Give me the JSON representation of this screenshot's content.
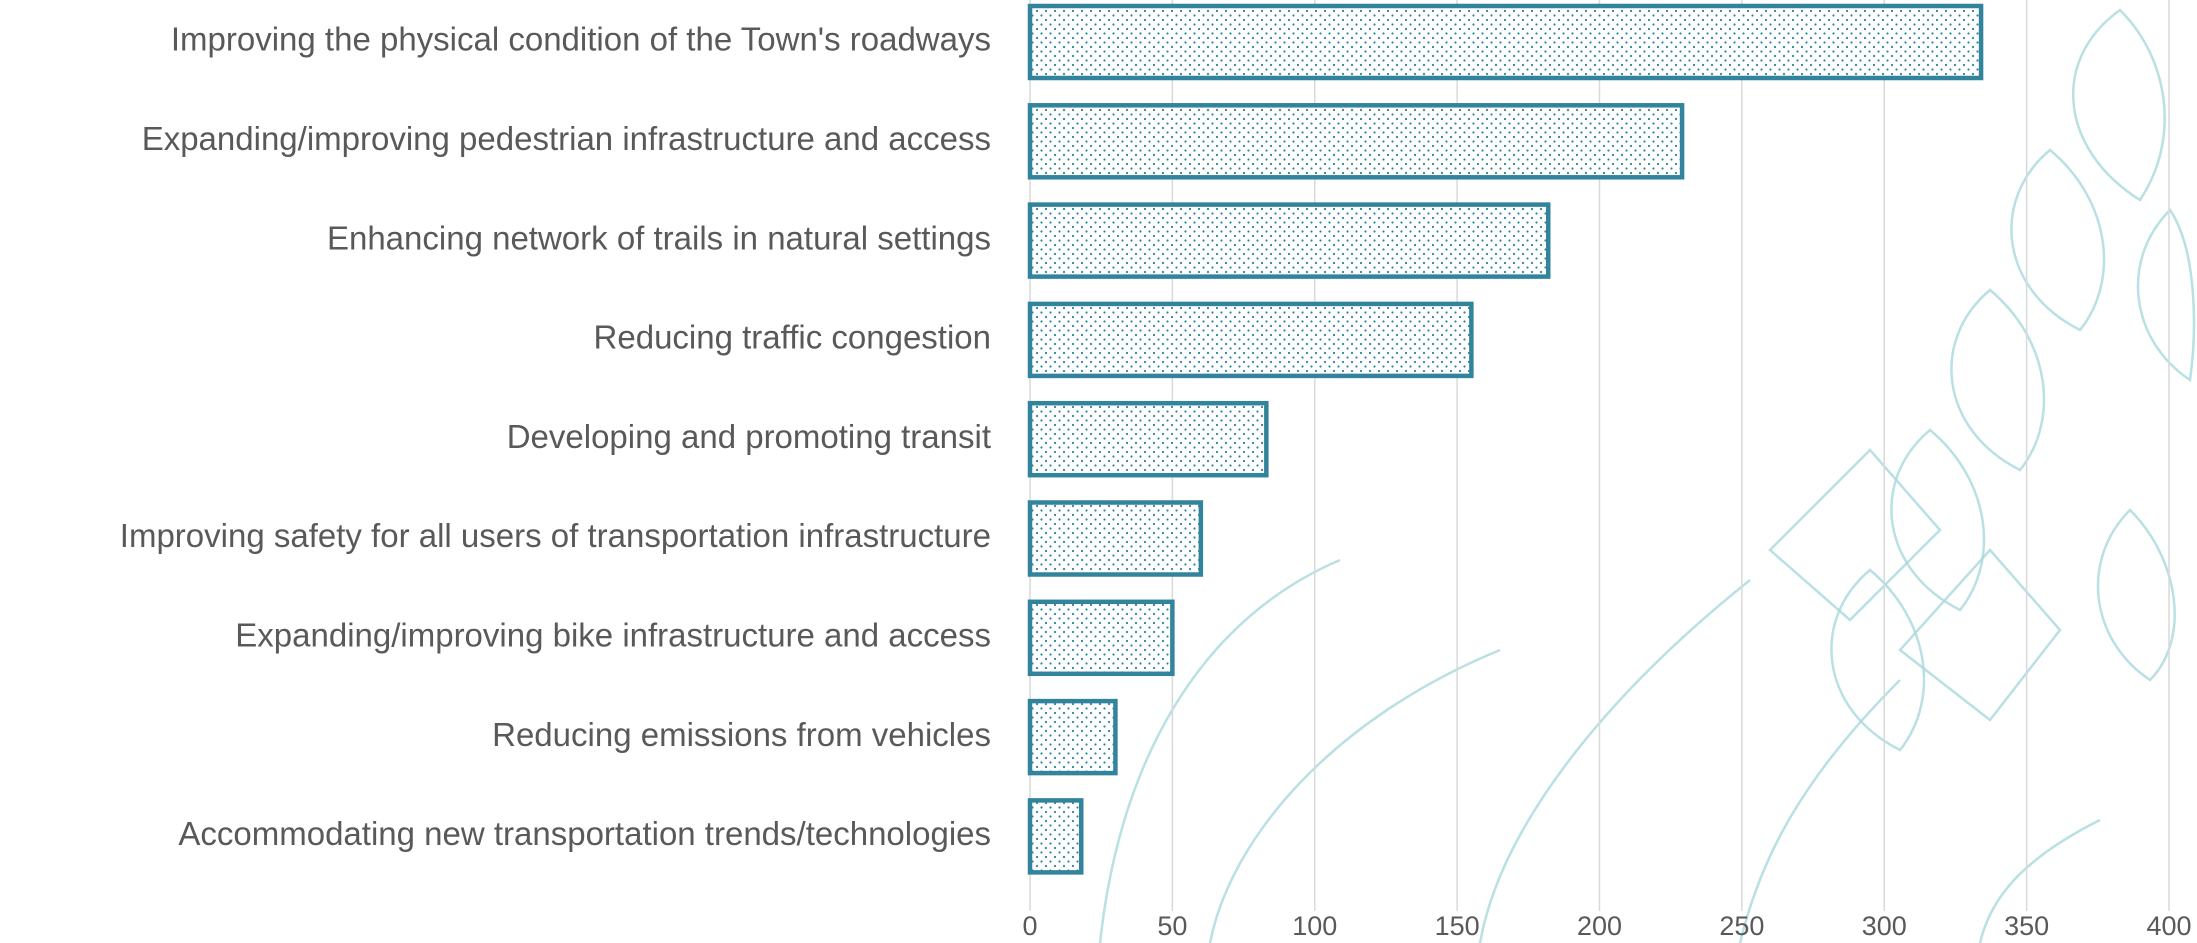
{
  "chart_data": {
    "type": "bar",
    "orientation": "horizontal",
    "categories": [
      "Improving the physical condition of the Town's roadways",
      "Expanding/improving pedestrian infrastructure and access",
      "Enhancing network of trails in natural settings",
      "Reducing traffic congestion",
      "Developing and promoting transit",
      "Improving safety for all users of transportation infrastructure",
      "Expanding/improving bike infrastructure and access",
      "Reducing emissions from vehicles",
      "Accommodating new transportation trends/technologies"
    ],
    "values": [
      334,
      229,
      182,
      155,
      83,
      60,
      50,
      30,
      18
    ],
    "color": "#31849b",
    "xlim": [
      0,
      400
    ],
    "xticks": [
      0,
      50,
      100,
      150,
      200,
      250,
      300,
      350,
      400
    ],
    "grid": true
  }
}
